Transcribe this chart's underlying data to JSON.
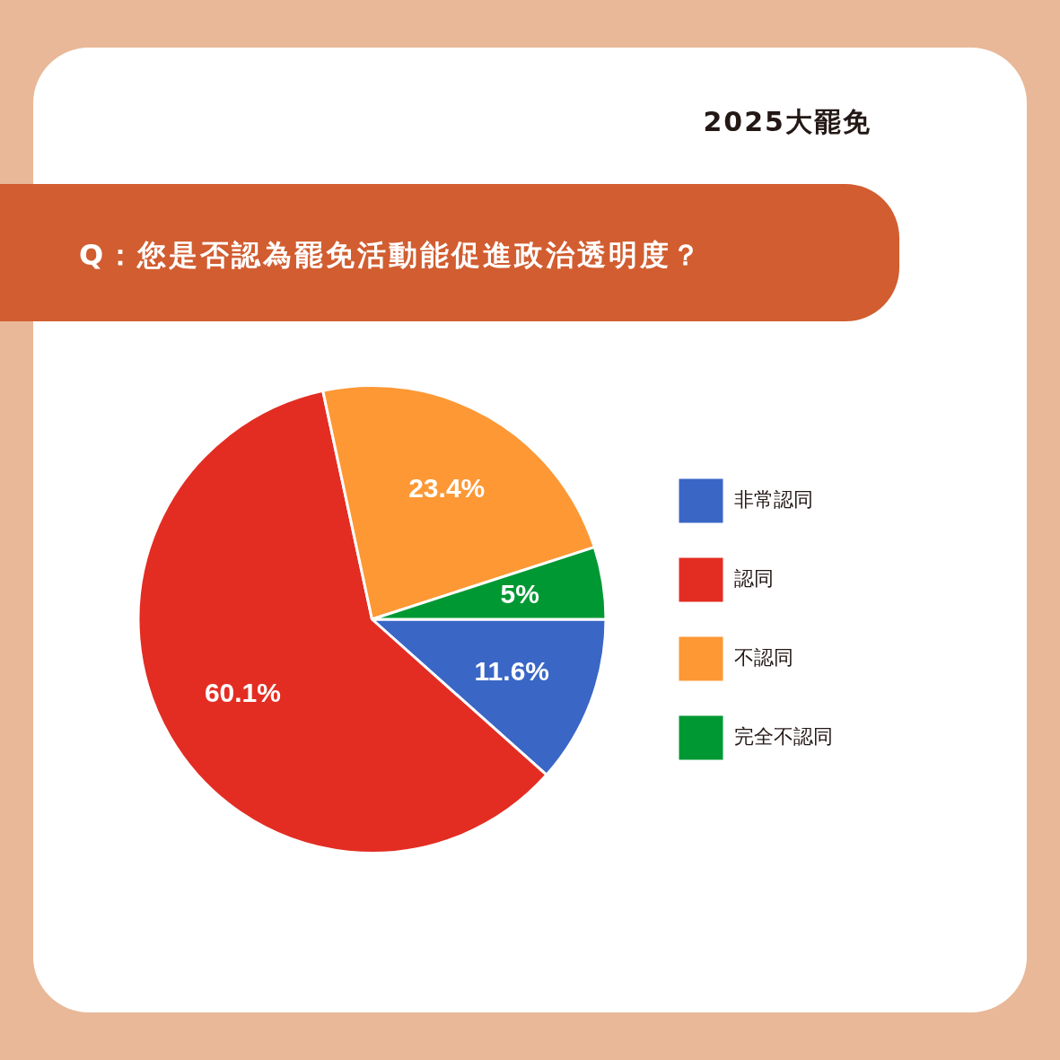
{
  "chart_data": {
    "type": "pie",
    "title": "Q：您是否認為罷免活動能促進政治透明度？",
    "subtitle": "2025大罷免",
    "categories": [
      "非常認同",
      "認同",
      "不認同",
      "完全不認同"
    ],
    "values": [
      11.6,
      60.1,
      23.4,
      5
    ],
    "value_labels": [
      "11.6%",
      "60.1%",
      "23.4%",
      "5%"
    ],
    "colors": [
      "#3a66c6",
      "#e32d23",
      "#fd9835",
      "#009833"
    ],
    "legend": "right"
  }
}
